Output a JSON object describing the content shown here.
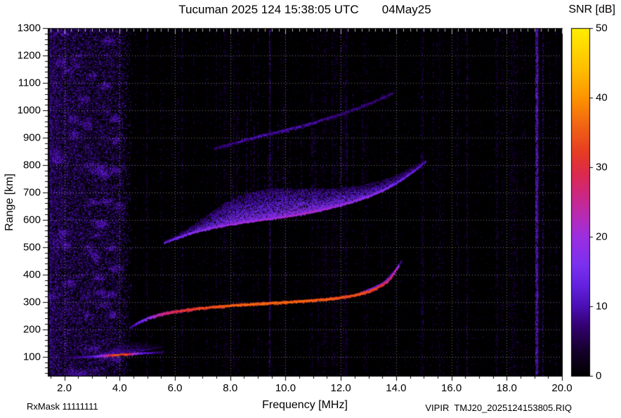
{
  "header": {
    "title": "Tucuman 2025 124 15:38:05 UTC       04May25",
    "colorbar_title": "SNR [dB]"
  },
  "footer": {
    "rx_mask": "RxMask 11111111",
    "file_id": "VIPIR  TMJ20_2025124153805.RIQ"
  },
  "chart_data": {
    "type": "heatmap",
    "title": "Tucuman 2025 124 15:38:05 UTC       04May25",
    "xlabel": "Frequency [MHz]",
    "ylabel": "Range [km]",
    "colorbar_label": "SNR [dB]",
    "xlim": [
      1.4,
      20.0
    ],
    "ylim": [
      30,
      1300
    ],
    "xticks": [
      2,
      4,
      6,
      8,
      10,
      12,
      14,
      16,
      18,
      20
    ],
    "xtick_labels": [
      "2.0",
      "4.0",
      "6.0",
      "8.0",
      "10.0",
      "12.0",
      "14.0",
      "16.0",
      "18.0",
      "20.0"
    ],
    "yticks": [
      100,
      200,
      300,
      400,
      500,
      600,
      700,
      800,
      900,
      1000,
      1100,
      1200,
      1300
    ],
    "colorbar": {
      "min": 0,
      "max": 50,
      "ticks": [
        0,
        10,
        20,
        30,
        40,
        50
      ]
    },
    "grid": true,
    "plot_background": "#000000",
    "colormap_stops": [
      [
        0.0,
        "#000000"
      ],
      [
        0.07,
        "#14002a"
      ],
      [
        0.14,
        "#32006e"
      ],
      [
        0.2,
        "#4b0fb4"
      ],
      [
        0.26,
        "#6322e0"
      ],
      [
        0.32,
        "#7c30f0"
      ],
      [
        0.4,
        "#9c2ee0"
      ],
      [
        0.46,
        "#b82bb4"
      ],
      [
        0.52,
        "#cc2782"
      ],
      [
        0.58,
        "#dc2a4e"
      ],
      [
        0.64,
        "#e63b24"
      ],
      [
        0.72,
        "#f26414"
      ],
      [
        0.8,
        "#fe9400"
      ],
      [
        0.88,
        "#ffbe00"
      ],
      [
        1.0,
        "#ffee00"
      ]
    ],
    "traces": [
      {
        "name": "E-layer-fuzz",
        "kind": "cloud",
        "density": 0.5,
        "columns": [
          [
            3.2,
            106,
            14,
            9
          ],
          [
            3.6,
            110,
            26,
            11
          ],
          [
            4.0,
            114,
            34,
            11
          ],
          [
            4.4,
            118,
            36,
            10
          ],
          [
            4.8,
            122,
            30,
            9
          ],
          [
            5.2,
            128,
            18,
            7
          ],
          [
            5.5,
            134,
            8,
            5
          ]
        ]
      },
      {
        "name": "E-layer",
        "kind": "line",
        "halfwidth_km": 3.5,
        "density": 3,
        "points": [
          [
            1.8,
            97,
            7
          ],
          [
            2.2,
            99,
            9
          ],
          [
            2.6,
            100,
            10
          ],
          [
            3.0,
            102,
            13
          ],
          [
            3.3,
            104,
            20
          ],
          [
            3.6,
            106,
            30
          ],
          [
            3.9,
            108,
            36
          ],
          [
            4.2,
            110,
            34
          ],
          [
            4.5,
            112,
            24
          ],
          [
            4.8,
            114,
            14
          ],
          [
            5.2,
            116,
            10
          ],
          [
            5.6,
            119,
            7
          ]
        ]
      },
      {
        "name": "F-2hop-cloud",
        "kind": "cloud",
        "density": 0.7,
        "columns": [
          [
            5.6,
            515,
            8,
            12
          ],
          [
            6.0,
            530,
            14,
            14
          ],
          [
            6.5,
            548,
            26,
            15
          ],
          [
            7.0,
            562,
            46,
            16
          ],
          [
            7.5,
            573,
            70,
            17
          ],
          [
            8.0,
            582,
            95,
            18
          ],
          [
            8.5,
            590,
            105,
            18
          ],
          [
            9.0,
            597,
            110,
            18
          ],
          [
            9.5,
            604,
            110,
            18
          ],
          [
            10.0,
            611,
            105,
            19
          ],
          [
            10.5,
            619,
            95,
            19
          ],
          [
            11.0,
            629,
            85,
            19
          ],
          [
            11.5,
            640,
            75,
            18
          ],
          [
            12.0,
            653,
            65,
            18
          ],
          [
            12.5,
            668,
            55,
            17
          ],
          [
            13.0,
            685,
            48,
            16
          ],
          [
            13.5,
            706,
            40,
            15
          ],
          [
            14.0,
            733,
            32,
            14
          ],
          [
            14.4,
            760,
            26,
            13
          ],
          [
            14.8,
            790,
            20,
            12
          ],
          [
            15.05,
            812,
            16,
            10
          ]
        ]
      },
      {
        "name": "F-2hop-edge",
        "kind": "line",
        "halfwidth_km": 3.5,
        "density": 2,
        "points": [
          [
            5.6,
            517,
            15
          ],
          [
            6.0,
            532,
            17
          ],
          [
            6.5,
            550,
            19
          ],
          [
            7.0,
            564,
            20
          ],
          [
            7.5,
            575,
            21
          ],
          [
            8.0,
            584,
            22
          ],
          [
            8.5,
            592,
            22
          ],
          [
            9.0,
            599,
            22
          ],
          [
            9.5,
            606,
            22
          ],
          [
            10.0,
            613,
            23
          ],
          [
            10.5,
            621,
            23
          ],
          [
            11.0,
            631,
            23
          ],
          [
            11.5,
            642,
            22
          ],
          [
            12.0,
            655,
            22
          ],
          [
            12.5,
            670,
            21
          ],
          [
            13.0,
            687,
            20
          ],
          [
            13.5,
            708,
            19
          ],
          [
            14.0,
            735,
            17
          ],
          [
            14.4,
            762,
            16
          ],
          [
            14.8,
            792,
            14
          ],
          [
            15.05,
            814,
            12
          ]
        ]
      },
      {
        "name": "F-3hop",
        "kind": "line",
        "halfwidth_km": 7,
        "density": 1.6,
        "points": [
          [
            7.4,
            860,
            8
          ],
          [
            8.0,
            878,
            10
          ],
          [
            8.5,
            892,
            11
          ],
          [
            9.0,
            905,
            12
          ],
          [
            9.5,
            917,
            11
          ],
          [
            10.0,
            929,
            12
          ],
          [
            10.5,
            942,
            12
          ],
          [
            11.0,
            956,
            11
          ],
          [
            11.5,
            971,
            10
          ],
          [
            12.0,
            987,
            10
          ],
          [
            12.5,
            1005,
            10
          ],
          [
            13.0,
            1025,
            9
          ],
          [
            13.5,
            1047,
            9
          ],
          [
            13.9,
            1066,
            8
          ]
        ]
      },
      {
        "name": "F-1hop-xmode",
        "kind": "line",
        "halfwidth_km": 4,
        "density": 1.2,
        "points": [
          [
            12.7,
            334,
            16
          ],
          [
            13.1,
            350,
            16
          ],
          [
            13.45,
            366,
            15
          ],
          [
            13.7,
            388,
            14
          ],
          [
            13.9,
            410,
            13
          ],
          [
            14.05,
            432,
            12
          ],
          [
            14.2,
            452,
            10
          ]
        ]
      },
      {
        "name": "F-1hop",
        "kind": "line",
        "halfwidth_km": 4.5,
        "density": 3.5,
        "points": [
          [
            4.35,
            206,
            10
          ],
          [
            4.7,
            228,
            15
          ],
          [
            5.1,
            245,
            21
          ],
          [
            5.5,
            257,
            27
          ],
          [
            6.0,
            266,
            31
          ],
          [
            6.5,
            273,
            33
          ],
          [
            7.0,
            279,
            35
          ],
          [
            7.5,
            284,
            36
          ],
          [
            8.0,
            288,
            37
          ],
          [
            9.0,
            294,
            38
          ],
          [
            10.0,
            300,
            38
          ],
          [
            11.0,
            307,
            37
          ],
          [
            11.5,
            311,
            37
          ],
          [
            12.0,
            317,
            36
          ],
          [
            12.5,
            326,
            36
          ],
          [
            13.0,
            339,
            35
          ],
          [
            13.3,
            352,
            34
          ],
          [
            13.6,
            371,
            31
          ],
          [
            13.8,
            391,
            28
          ],
          [
            13.95,
            413,
            26
          ],
          [
            14.08,
            434,
            20
          ]
        ]
      }
    ],
    "rfi": [
      {
        "f": 19.08,
        "width": 0.1,
        "count": 2400,
        "snr": [
          7,
          17
        ]
      },
      {
        "f": 19.3,
        "width": 0.05,
        "count": 500,
        "snr": [
          5,
          11
        ]
      },
      {
        "f": 9.42,
        "width": 0.05,
        "count": 700,
        "snr": [
          5,
          12
        ]
      },
      {
        "f": 14.95,
        "width": 0.05,
        "count": 350,
        "snr": [
          4,
          10
        ]
      },
      {
        "f": 16.55,
        "width": 0.05,
        "count": 320,
        "snr": [
          4,
          9
        ]
      },
      {
        "f": 17.65,
        "width": 0.04,
        "count": 260,
        "snr": [
          4,
          9
        ]
      },
      {
        "f": 6.25,
        "width": 0.04,
        "count": 280,
        "snr": [
          4,
          10
        ]
      },
      {
        "f": 12.2,
        "width": 0.04,
        "count": 240,
        "snr": [
          4,
          9
        ]
      }
    ],
    "noise": {
      "speckle_count": 9500,
      "column_streaks": 70,
      "plume_streaks": 26,
      "left_band": {
        "f": [
          1.45,
          4.45
        ],
        "count": 30000,
        "snr": [
          3,
          14
        ],
        "clusters": 55
      }
    }
  }
}
